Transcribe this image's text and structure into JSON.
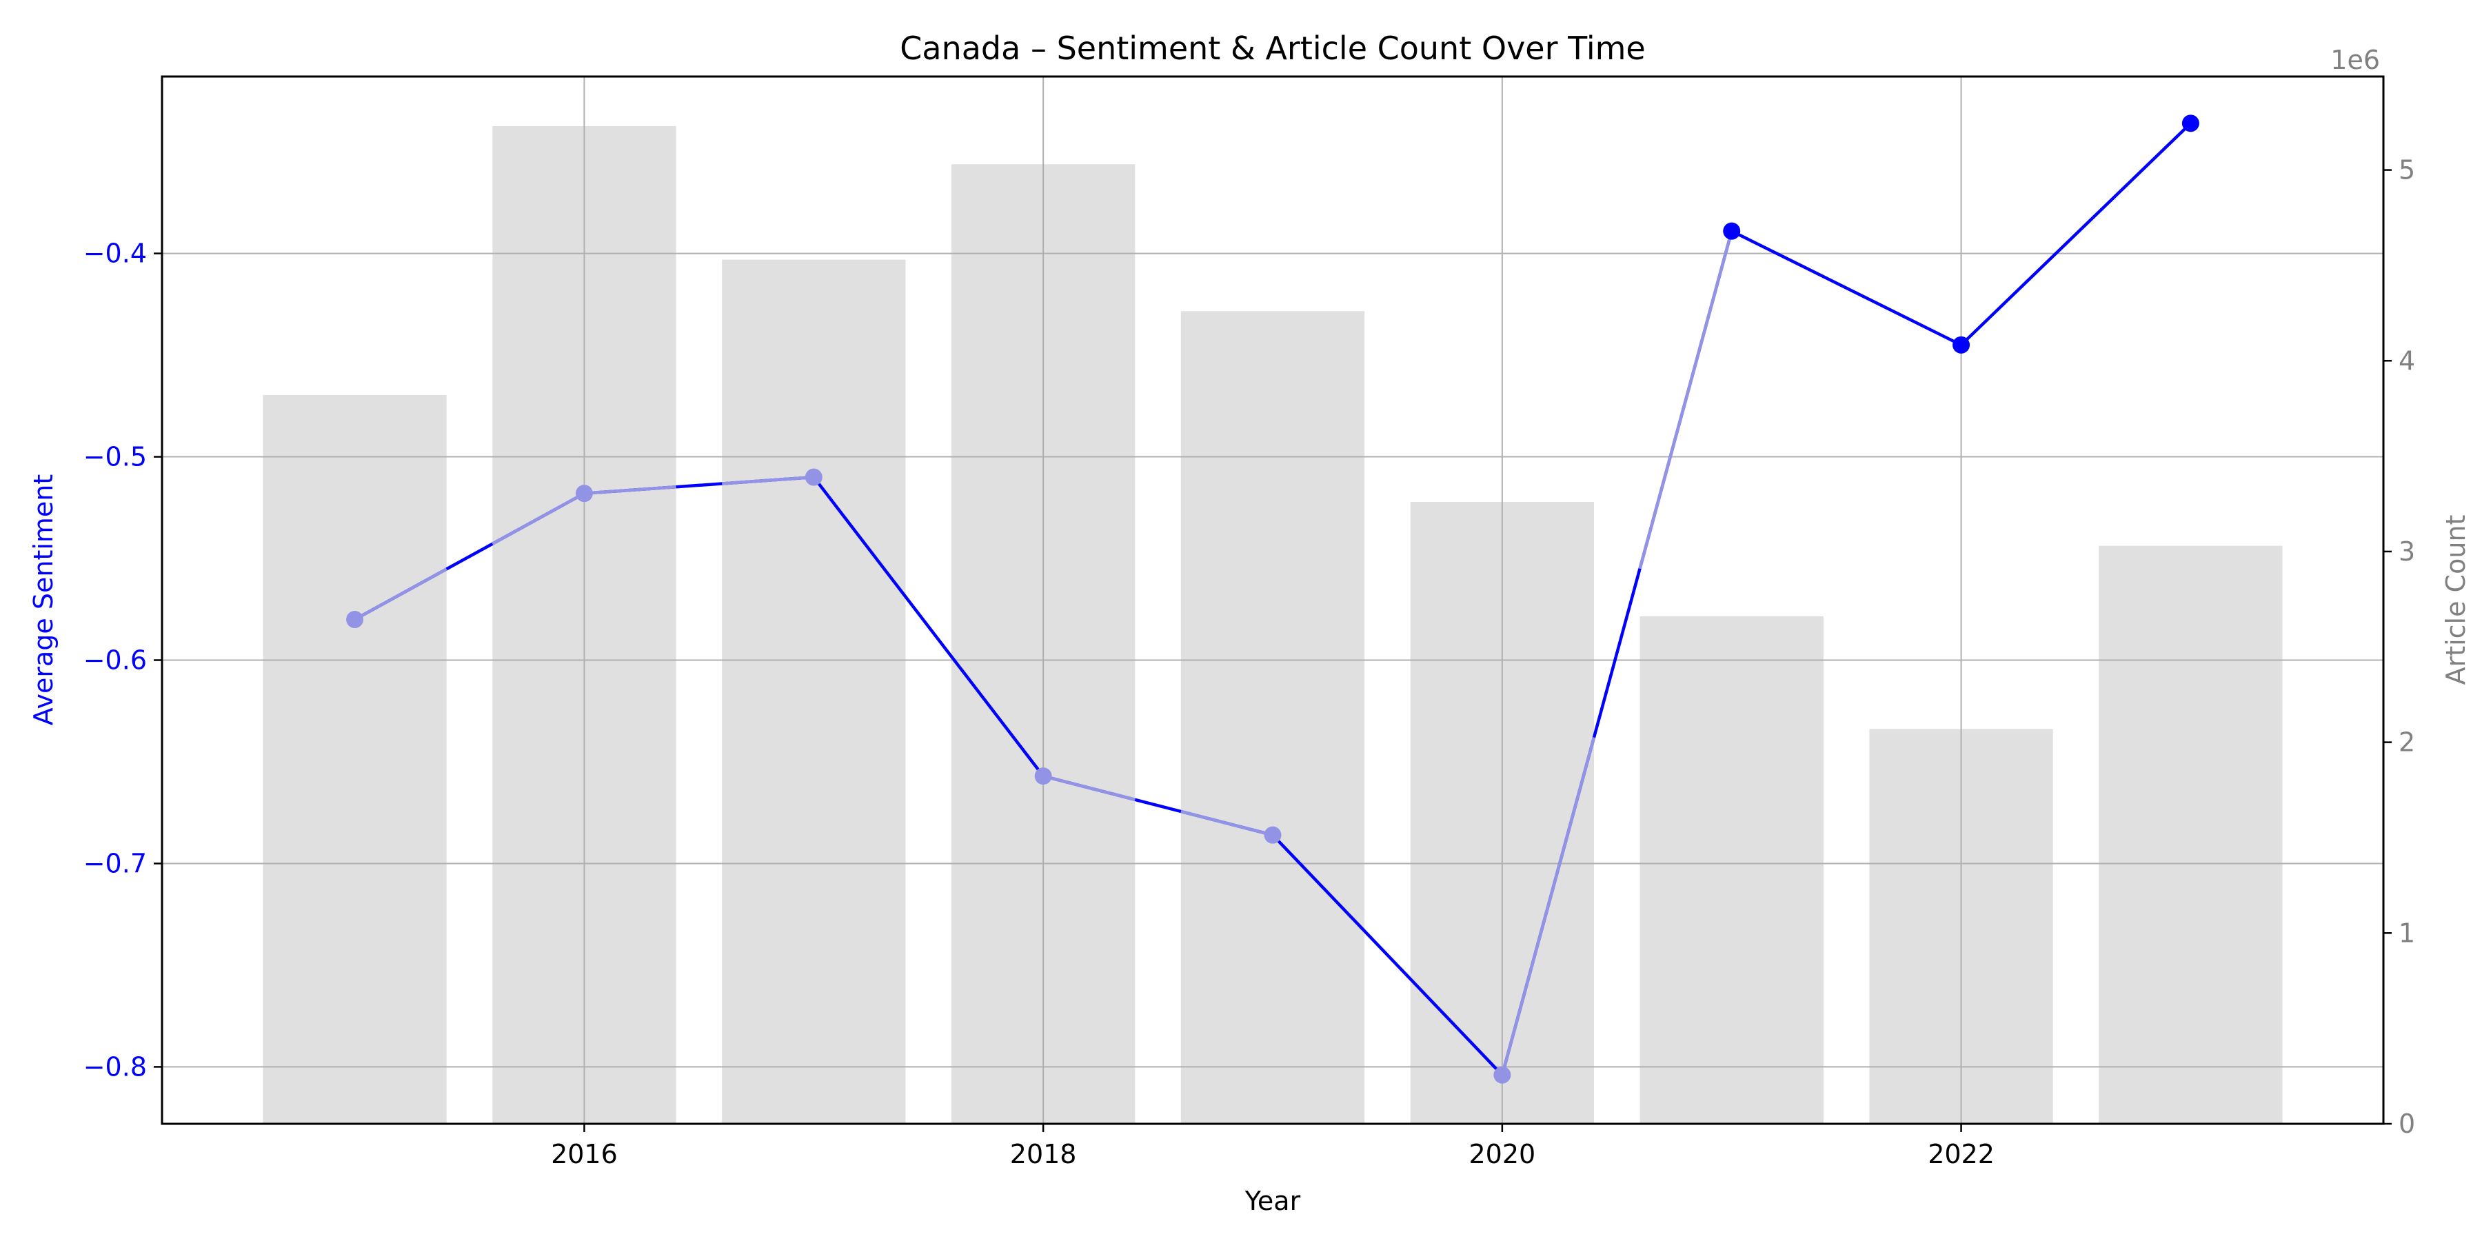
{
  "chart_data": {
    "type": "bar+line",
    "title": "Canada – Sentiment & Article Count Over Time",
    "xlabel": "Year",
    "ylabel_left": "Average Sentiment",
    "ylabel_right": "Article Count",
    "right_axis_multiplier": "1e6",
    "x": [
      2015,
      2016,
      2017,
      2018,
      2019,
      2020,
      2021,
      2022,
      2023
    ],
    "x_ticks": [
      2016,
      2018,
      2020,
      2022
    ],
    "x_tick_labels": [
      "2016",
      "2018",
      "2020",
      "2022"
    ],
    "xlim": [
      2014.16,
      2023.84
    ],
    "series": [
      {
        "name": "Average Sentiment",
        "axis": "left",
        "kind": "line",
        "values": [
          -0.58,
          -0.518,
          -0.51,
          -0.657,
          -0.686,
          -0.804,
          -0.389,
          -0.445,
          -0.336
        ]
      },
      {
        "name": "Article Count",
        "axis": "right",
        "kind": "bar",
        "values": [
          3820000,
          5230000,
          4530000,
          5030000,
          4260000,
          3260000,
          2660000,
          2070000,
          3030000
        ]
      }
    ],
    "ylim_left": [
      -0.828,
      -0.313
    ],
    "yticks_left": [
      -0.8,
      -0.7,
      -0.6,
      -0.5,
      -0.4
    ],
    "ytick_labels_left": [
      "−0.8",
      "−0.7",
      "−0.6",
      "−0.5",
      "−0.4"
    ],
    "ylim_right": [
      0,
      5490000
    ],
    "yticks_right": [
      0,
      1000000,
      2000000,
      3000000,
      4000000,
      5000000
    ],
    "ytick_labels_right": [
      "0",
      "1",
      "2",
      "3",
      "4",
      "5"
    ],
    "grid": true,
    "colors": {
      "line": "#0000ff",
      "line_faded": "#9393e6",
      "bars": "#e0e0e0",
      "grid": "#b0b0b0",
      "left_axis": "#0000ff",
      "right_axis": "#808080"
    }
  }
}
